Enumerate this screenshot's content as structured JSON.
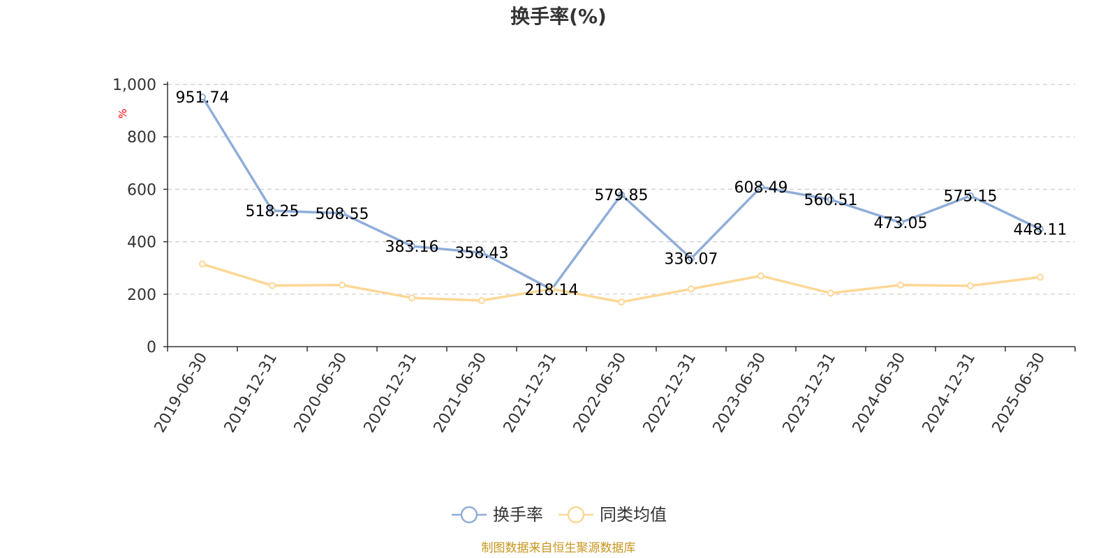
{
  "chart_data": {
    "type": "line",
    "title": "换手率(%)",
    "ylabel": "%",
    "xlabel": "",
    "ylim": [
      0,
      1000
    ],
    "y_ticks": [
      0,
      200,
      400,
      600,
      800,
      1000
    ],
    "y_tick_labels": [
      "0",
      "200",
      "400",
      "600",
      "800",
      "1,000"
    ],
    "grid": true,
    "legend_position": "bottom-center",
    "categories": [
      "2019-06-30",
      "2019-12-31",
      "2020-06-30",
      "2020-12-31",
      "2021-06-30",
      "2021-12-31",
      "2022-06-30",
      "2022-12-31",
      "2023-06-30",
      "2023-12-31",
      "2024-06-30",
      "2024-12-31",
      "2025-06-30"
    ],
    "series": [
      {
        "name": "换手率",
        "color": "#8fadd9",
        "show_labels": true,
        "values": [
          951.74,
          518.25,
          508.55,
          383.16,
          358.43,
          218.14,
          579.85,
          336.07,
          608.49,
          560.51,
          473.05,
          575.15,
          448.11
        ],
        "labels": [
          "951.74",
          "518.25",
          "508.55",
          "383.16",
          "358.43",
          "218.14",
          "579.85",
          "336.07",
          "608.49",
          "560.51",
          "473.05",
          "575.15",
          "448.11"
        ]
      },
      {
        "name": "同类均值",
        "color": "#fdd795",
        "show_labels": false,
        "values": [
          315,
          233,
          235,
          186,
          176,
          220,
          170,
          220,
          270,
          204,
          235,
          232,
          265
        ]
      }
    ],
    "source": "制图数据来自恒生聚源数据库"
  }
}
